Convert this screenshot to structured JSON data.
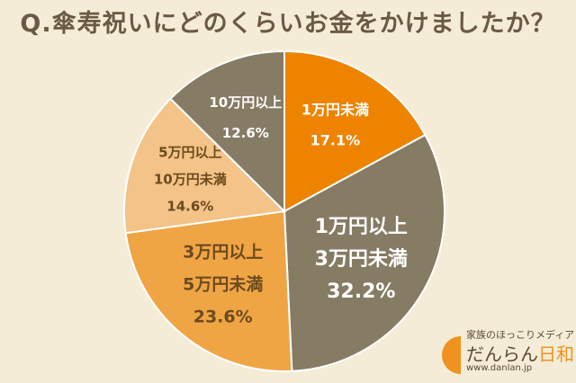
{
  "title": "Q.傘寿祝いにどのくらいお金をかけましたか？",
  "chart_data": {
    "type": "pie",
    "title": "Q.傘寿祝いにどのくらいお金をかけましたか？",
    "start": "12 o'clock",
    "direction": "clockwise",
    "slices": [
      {
        "lines": [
          "1万円未満"
        ],
        "value": 17.1,
        "value_label": "17.1%",
        "color": "#ee8300",
        "text_color": "#ffffff"
      },
      {
        "lines": [
          "1万円以上",
          "3万円未満"
        ],
        "value": 32.2,
        "value_label": "32.2%",
        "color": "#867b63",
        "text_color": "#ffffff"
      },
      {
        "lines": [
          "3万円以上",
          "5万円未満"
        ],
        "value": 23.6,
        "value_label": "23.6%",
        "color": "#f0a545",
        "text_color": "#6b4a1e"
      },
      {
        "lines": [
          "5万円以上",
          "10万円未満"
        ],
        "value": 14.6,
        "value_label": "14.6%",
        "color": "#f3c387",
        "text_color": "#6b4a1e"
      },
      {
        "lines": [
          "10万円以上"
        ],
        "value": 12.6,
        "value_label": "12.6%",
        "color": "#867b63",
        "text_color": "#ffffff"
      }
    ]
  },
  "brand": {
    "tagline": "家族のほっこりメディア",
    "name_main": "だんらん",
    "name_accent": "日和",
    "url": "www.danlan.jp",
    "accent_color": "#f0921e"
  }
}
